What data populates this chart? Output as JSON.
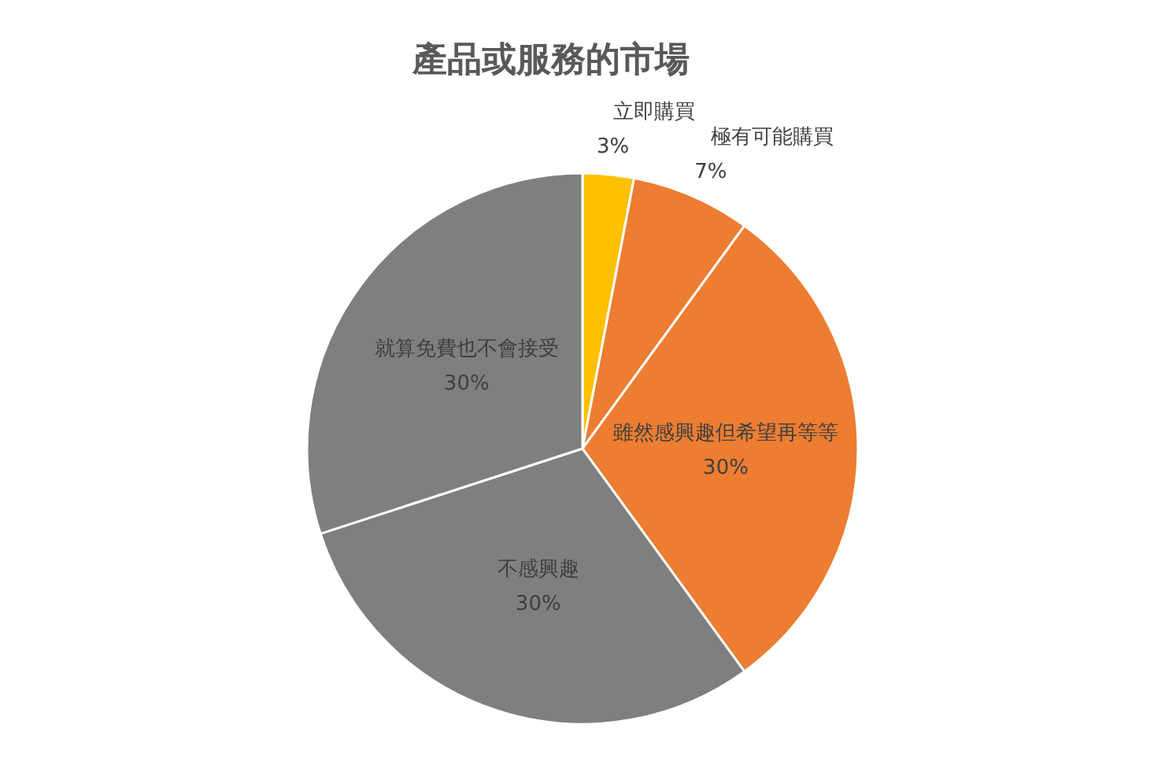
{
  "chart_data": {
    "type": "pie",
    "title": "產品或服務的市場",
    "categories": [
      "立即購買",
      "極有可能購買",
      "雖然感興趣但希望再等等",
      "不感興趣",
      "就算免費也不會接受"
    ],
    "values": [
      3,
      7,
      30,
      30,
      30
    ],
    "value_labels": [
      "3%",
      "7%",
      "30%",
      "30%",
      "30%"
    ],
    "colors": [
      "#ffc000",
      "#ed7d31",
      "#ed7d31",
      "#7f7f7f",
      "#7f7f7f"
    ]
  }
}
